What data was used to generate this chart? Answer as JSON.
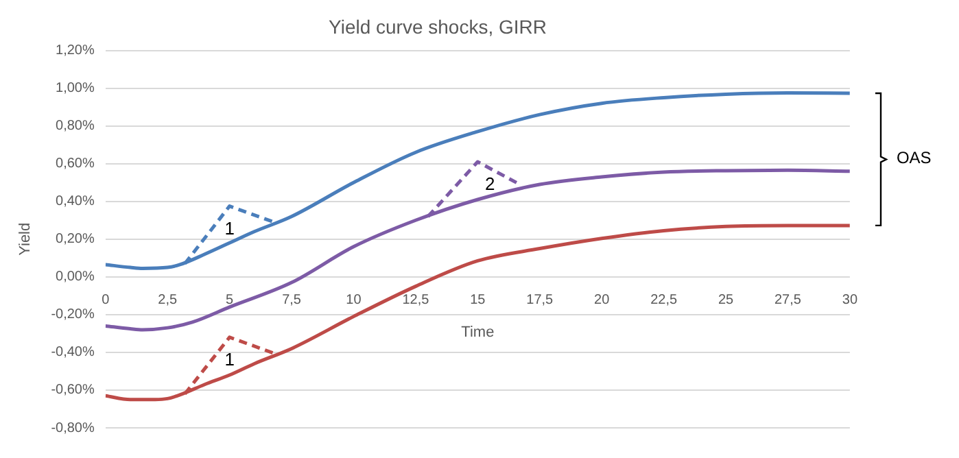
{
  "chart_data": {
    "type": "line",
    "title": "Yield curve shocks, GIRR",
    "xlabel": "Time",
    "ylabel": "Yield",
    "xlim": [
      0,
      30
    ],
    "xticks": [
      0,
      {
        "value": 2.5,
        "label": "2,5"
      },
      5,
      {
        "value": 7.5,
        "label": "7,5"
      },
      10,
      {
        "value": 12.5,
        "label": "12,5"
      },
      15,
      {
        "value": 17.5,
        "label": "17,5"
      },
      20,
      {
        "value": 22.5,
        "label": "22,5"
      },
      25,
      {
        "value": 27.5,
        "label": "27,5"
      },
      30
    ],
    "ylim": [
      -0.8,
      1.2
    ],
    "yticks": [
      {
        "value": -0.8,
        "label": "-0,80%"
      },
      {
        "value": -0.6,
        "label": "-0,60%"
      },
      {
        "value": -0.4,
        "label": "-0,40%"
      },
      {
        "value": -0.2,
        "label": "-0,20%"
      },
      {
        "value": 0,
        "label": "0,00%"
      },
      {
        "value": 0.2,
        "label": "0,20%"
      },
      {
        "value": 0.4,
        "label": "0,40%"
      },
      {
        "value": 0.6,
        "label": "0,60%"
      },
      {
        "value": 0.8,
        "label": "0,80%"
      },
      {
        "value": 1.0,
        "label": "1,00%"
      },
      {
        "value": 1.2,
        "label": "1,20%"
      }
    ],
    "grid": "y",
    "marker": "none",
    "series": [
      {
        "color": "#4a7ebb",
        "line_style": "solid",
        "x": [
          0,
          1,
          1.5,
          2.5,
          3,
          4,
          5,
          6,
          7.5,
          10,
          12.5,
          15,
          17.5,
          20,
          22.5,
          25,
          27.5,
          30
        ],
        "values": [
          0.065,
          0.05,
          0.045,
          0.05,
          0.065,
          0.12,
          0.18,
          0.24,
          0.32,
          0.5,
          0.66,
          0.77,
          0.86,
          0.92,
          0.95,
          0.968,
          0.975,
          0.973
        ]
      },
      {
        "color": "#7d5ba6",
        "line_style": "solid",
        "x": [
          0,
          1,
          1.5,
          2.5,
          3.5,
          5,
          7.5,
          10,
          12.5,
          15,
          17.5,
          20,
          22.5,
          25,
          27.5,
          30
        ],
        "values": [
          -0.26,
          -0.275,
          -0.28,
          -0.27,
          -0.24,
          -0.16,
          -0.03,
          0.16,
          0.3,
          0.41,
          0.49,
          0.53,
          0.555,
          0.563,
          0.565,
          0.56
        ]
      },
      {
        "color": "#be4b48",
        "line_style": "solid",
        "x": [
          0,
          1,
          2,
          2.5,
          3,
          4,
          5,
          6,
          7.5,
          10,
          12.5,
          15,
          17.5,
          20,
          22.5,
          25,
          27.5,
          30
        ],
        "values": [
          -0.63,
          -0.65,
          -0.65,
          -0.645,
          -0.625,
          -0.57,
          -0.52,
          -0.46,
          -0.38,
          -0.21,
          -0.05,
          0.085,
          0.15,
          0.204,
          0.245,
          0.267,
          0.272,
          0.272
        ]
      },
      {
        "color": "#4a7ebb",
        "line_style": "dashed",
        "x": [
          3.2,
          5,
          6.8
        ],
        "values": [
          0.07,
          0.375,
          0.29
        ]
      },
      {
        "color": "#be4b48",
        "line_style": "dashed",
        "x": [
          3.2,
          5,
          6.9
        ],
        "values": [
          -0.62,
          -0.32,
          -0.41
        ]
      },
      {
        "color": "#7d5ba6",
        "line_style": "dashed",
        "x": [
          13,
          15,
          16.7
        ],
        "values": [
          0.32,
          0.61,
          0.49
        ]
      }
    ],
    "annotations": [
      "1",
      "1",
      "2",
      "OAS"
    ]
  }
}
